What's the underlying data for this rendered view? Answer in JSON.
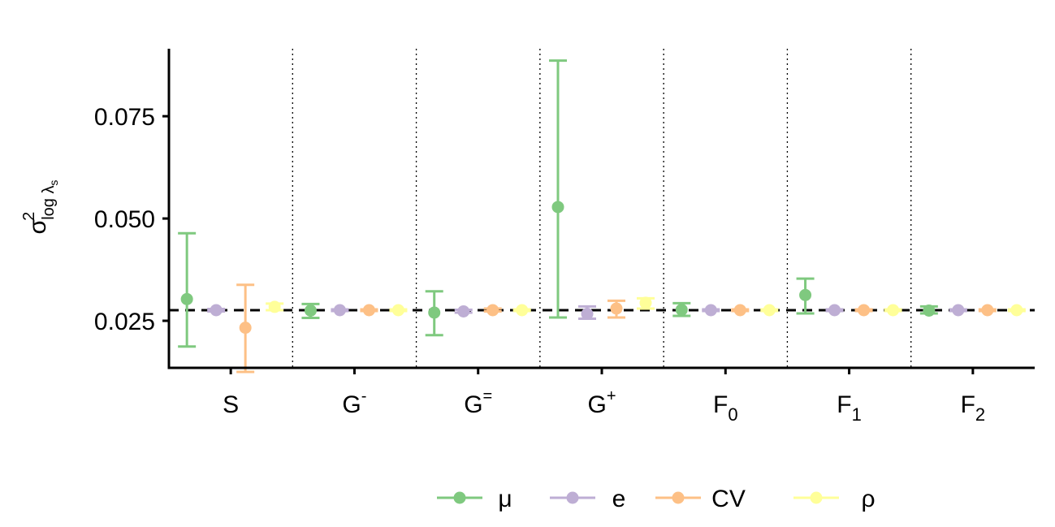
{
  "chart_data": {
    "type": "scatter",
    "title": "",
    "xlabel": "",
    "ylabel": {
      "symbol": "σ",
      "superscript": "2",
      "subscript_base": "log λ",
      "subscript_sub": "s"
    },
    "ylim": [
      0.0135,
      0.0915
    ],
    "yticks": [
      0.025,
      0.05,
      0.075
    ],
    "ytick_labels": [
      "0.025",
      "0.050",
      "0.075"
    ],
    "reference_line": 0.0276,
    "grid": false,
    "legend_position": "bottom",
    "categories": [
      {
        "base": "S",
        "sup": "",
        "sub": ""
      },
      {
        "base": "G",
        "sup": "-",
        "sub": ""
      },
      {
        "base": "G",
        "sup": "=",
        "sub": ""
      },
      {
        "base": "G",
        "sup": "+",
        "sub": ""
      },
      {
        "base": "F",
        "sup": "",
        "sub": "0"
      },
      {
        "base": "F",
        "sup": "",
        "sub": "1"
      },
      {
        "base": "F",
        "sup": "",
        "sub": "2"
      }
    ],
    "series": [
      {
        "name": "μ",
        "color": "#7fc97f",
        "values": [
          0.0303,
          0.0275,
          0.027,
          0.0528,
          0.0277,
          0.0313,
          0.0275
        ],
        "lower": [
          0.0187,
          0.0257,
          0.0215,
          0.0258,
          0.0262,
          0.0268,
          0.0268
        ],
        "upper": [
          0.0464,
          0.0291,
          0.0322,
          0.0886,
          0.0293,
          0.0353,
          0.0285
        ]
      },
      {
        "name": "e",
        "color": "#beaed4",
        "values": [
          0.0276,
          0.0276,
          0.0273,
          0.0267,
          0.0276,
          0.0276,
          0.0276
        ],
        "lower": [
          0.0273,
          0.0274,
          0.027,
          0.0255,
          0.0274,
          0.0274,
          0.0274
        ],
        "upper": [
          0.0279,
          0.0278,
          0.0277,
          0.0285,
          0.0278,
          0.0278,
          0.0278
        ]
      },
      {
        "name": "CV",
        "color": "#fdc086",
        "values": [
          0.0233,
          0.0276,
          0.0276,
          0.028,
          0.0276,
          0.0276,
          0.0276
        ],
        "lower": [
          0.0125,
          0.0274,
          0.0273,
          0.0258,
          0.0274,
          0.0274,
          0.0274
        ],
        "upper": [
          0.0338,
          0.0278,
          0.028,
          0.0299,
          0.0278,
          0.0278,
          0.0278
        ]
      },
      {
        "name": "ρ",
        "color": "#ffff99",
        "values": [
          0.0284,
          0.0276,
          0.0276,
          0.0294,
          0.0276,
          0.0276,
          0.0276
        ],
        "lower": [
          0.0276,
          0.0274,
          0.0274,
          0.028,
          0.0274,
          0.0274,
          0.0274
        ],
        "upper": [
          0.0292,
          0.0278,
          0.0278,
          0.0305,
          0.0278,
          0.0278,
          0.0278
        ]
      }
    ]
  }
}
